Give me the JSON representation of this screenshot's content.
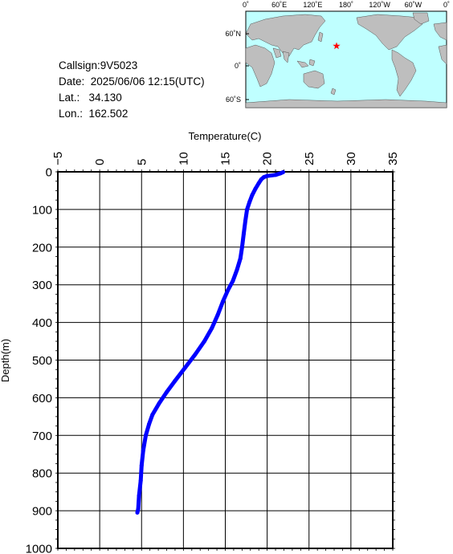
{
  "info": {
    "callsign": "Callsign:9V5023",
    "date": "Date:  2025/06/06 12:15(UTC)",
    "lat": "Lat.:   34.130",
    "lon": "Lon.:  162.502"
  },
  "map": {
    "top_labels": [
      "0˚",
      "60˚E",
      "120˚E",
      "180˚",
      "120˚W",
      "60˚W",
      "0˚"
    ],
    "lat_labels": [
      "60˚N",
      "0˚",
      "60˚S"
    ],
    "ocean_color": "#bfffff",
    "land_color": "#bebebe",
    "marker": {
      "lon": 162.502,
      "lat": 34.13,
      "color": "#ff0000",
      "shape": "star"
    }
  },
  "chart_data": {
    "type": "line",
    "title": "",
    "xlabel": "Temperature(C)",
    "ylabel": "Depth(m)",
    "xlim": [
      -5,
      35
    ],
    "ylim": [
      0,
      1000
    ],
    "y_inverted": true,
    "x_axis_position": "top",
    "grid": true,
    "x_ticks": [
      "-5",
      "0",
      "5",
      "10",
      "15",
      "20",
      "25",
      "30",
      "35"
    ],
    "y_ticks": [
      "0",
      "100",
      "200",
      "300",
      "400",
      "500",
      "600",
      "700",
      "800",
      "900",
      "1000"
    ],
    "series": [
      {
        "color": "#0000ff",
        "points": [
          [
            21.9,
            1
          ],
          [
            21.6,
            4
          ],
          [
            21.0,
            8
          ],
          [
            20.0,
            11
          ],
          [
            19.6,
            14
          ],
          [
            19.3,
            20
          ],
          [
            19.0,
            30
          ],
          [
            18.6,
            45
          ],
          [
            18.2,
            62
          ],
          [
            17.9,
            80
          ],
          [
            17.6,
            100
          ],
          [
            17.4,
            130
          ],
          [
            17.2,
            165
          ],
          [
            17.0,
            200
          ],
          [
            16.8,
            230
          ],
          [
            16.4,
            260
          ],
          [
            15.9,
            290
          ],
          [
            15.3,
            315
          ],
          [
            14.7,
            345
          ],
          [
            14.1,
            380
          ],
          [
            13.4,
            415
          ],
          [
            12.5,
            450
          ],
          [
            11.4,
            485
          ],
          [
            10.2,
            520
          ],
          [
            9.0,
            555
          ],
          [
            8.0,
            585
          ],
          [
            7.1,
            615
          ],
          [
            6.3,
            645
          ],
          [
            5.9,
            670
          ],
          [
            5.5,
            700
          ],
          [
            5.2,
            740
          ],
          [
            5.0,
            780
          ],
          [
            4.9,
            820
          ],
          [
            4.7,
            860
          ],
          [
            4.6,
            895
          ],
          [
            4.5,
            905
          ]
        ]
      }
    ]
  }
}
